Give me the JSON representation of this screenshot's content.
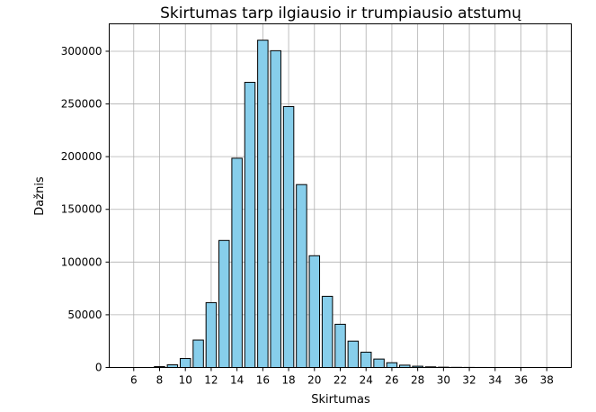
{
  "chart_data": {
    "type": "bar",
    "title": "Skirtumas tarp ilgiausio ir trumpiausio atstumų",
    "xlabel": "Skirtumas",
    "ylabel": "Dažnis",
    "x": [
      6,
      7,
      8,
      9,
      10,
      11,
      12,
      13,
      14,
      15,
      16,
      17,
      18,
      19,
      20,
      21,
      22,
      23,
      24,
      25,
      26,
      27,
      28,
      29,
      30,
      31,
      32,
      33,
      34,
      35,
      36,
      37,
      38
    ],
    "values": [
      0,
      0,
      800,
      2500,
      8500,
      26000,
      61500,
      120500,
      198500,
      270500,
      310500,
      300500,
      247500,
      173500,
      106000,
      67500,
      41000,
      25000,
      14500,
      8000,
      4500,
      2200,
      1200,
      600,
      300,
      150,
      80,
      40,
      20,
      10,
      5,
      2,
      1
    ],
    "xlim": [
      4.1,
      39.9
    ],
    "ylim": [
      0,
      326000
    ],
    "xticks": [
      "6",
      "8",
      "10",
      "12",
      "14",
      "16",
      "18",
      "20",
      "22",
      "24",
      "26",
      "28",
      "30",
      "32",
      "34",
      "36",
      "38"
    ],
    "yticks": [
      "0",
      "50000",
      "100000",
      "150000",
      "200000",
      "250000",
      "300000"
    ],
    "grid": true,
    "bar_color": "#87ceeb",
    "edge_color": "#000000"
  }
}
